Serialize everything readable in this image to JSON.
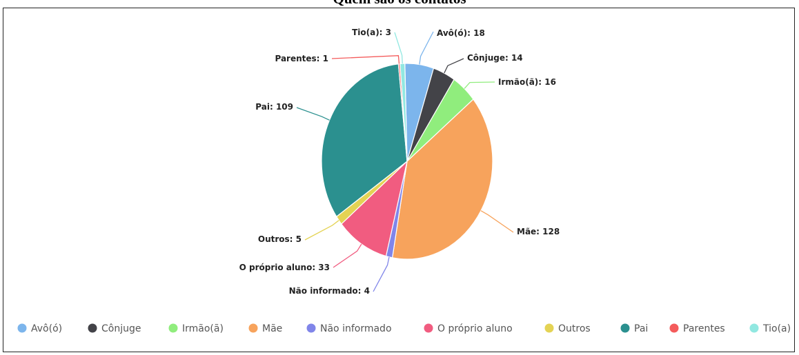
{
  "title": "Quem são os contatos",
  "chart_data": {
    "type": "pie",
    "title": "Quem são os contatos",
    "slices": [
      {
        "name": "Avô(ó)",
        "value": 18,
        "color": "#7cb5ec",
        "label": "Avô(ó): 18"
      },
      {
        "name": "Cônjuge",
        "value": 14,
        "color": "#434348",
        "label": "Cônjuge: 14"
      },
      {
        "name": "Irmão(ã)",
        "value": 16,
        "color": "#90ed7d",
        "label": "Irmão(ã): 16"
      },
      {
        "name": "Mãe",
        "value": 128,
        "color": "#f7a35c",
        "label": "Mãe: 128"
      },
      {
        "name": "Não informado",
        "value": 4,
        "color": "#8085e9",
        "label": "Não informado: 4"
      },
      {
        "name": "O próprio aluno",
        "value": 33,
        "color": "#f15c80",
        "label": "O próprio aluno: 33"
      },
      {
        "name": "Outros",
        "value": 5,
        "color": "#e4d354",
        "label": "Outros: 5"
      },
      {
        "name": "Pai",
        "value": 109,
        "color": "#2b908f",
        "label": "Pai: 109"
      },
      {
        "name": "Parentes",
        "value": 1,
        "color": "#f45b5b",
        "label": "Parentes: 1"
      },
      {
        "name": "Tio(a)",
        "value": 3,
        "color": "#91e8e1",
        "label": "Tio(a): 3"
      }
    ],
    "legend_position": "bottom"
  }
}
